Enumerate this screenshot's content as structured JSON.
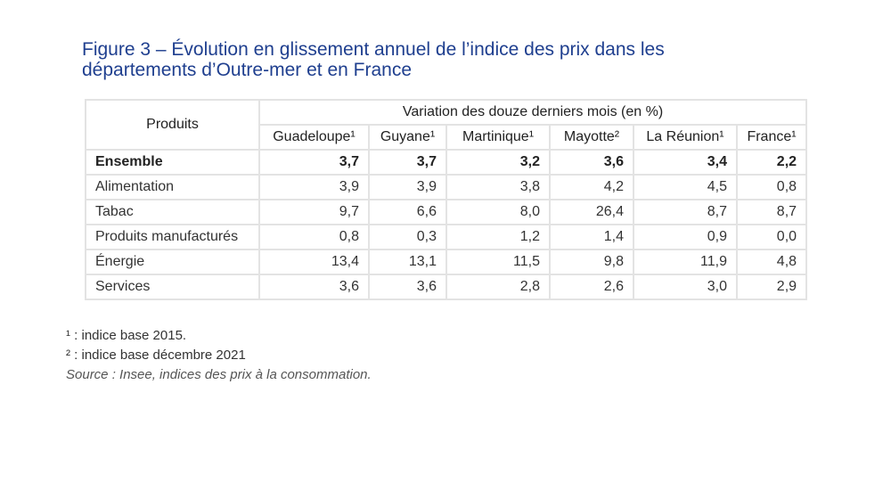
{
  "title": {
    "line1": "Figure 3 – Évolution en glissement annuel de l’indice des prix dans les",
    "line2": "départements d’Outre-mer et en France"
  },
  "table": {
    "header_products": "Produits",
    "header_variation": "Variation des douze derniers mois (en %)",
    "columns": [
      "Guadeloupe¹",
      "Guyane¹",
      "Martinique¹",
      "Mayotte²",
      "La Réunion¹",
      "France¹"
    ],
    "rows": [
      {
        "label": "Ensemble",
        "values": [
          "3,7",
          "3,7",
          "3,2",
          "3,6",
          "3,4",
          "2,2"
        ]
      },
      {
        "label": "Alimentation",
        "values": [
          "3,9",
          "3,9",
          "3,8",
          "4,2",
          "4,5",
          "0,8"
        ]
      },
      {
        "label": "Tabac",
        "values": [
          "9,7",
          "6,6",
          "8,0",
          "26,4",
          "8,7",
          "8,7"
        ]
      },
      {
        "label": "Produits manufacturés",
        "values": [
          "0,8",
          "0,3",
          "1,2",
          "1,4",
          "0,9",
          "0,0"
        ]
      },
      {
        "label": "Énergie",
        "values": [
          "13,4",
          "13,1",
          "11,5",
          "9,8",
          "11,9",
          "4,8"
        ]
      },
      {
        "label": "Services",
        "values": [
          "3,6",
          "3,6",
          "2,8",
          "2,6",
          "3,0",
          "2,9"
        ]
      }
    ]
  },
  "notes": {
    "note1": "¹ : indice base 2015.",
    "note2": "² : indice base décembre 2021",
    "source": "Source : Insee, indices des prix à la consommation."
  },
  "colors": {
    "title": "#1f3f8f",
    "border": "#e3e3e3",
    "text": "#333333"
  }
}
